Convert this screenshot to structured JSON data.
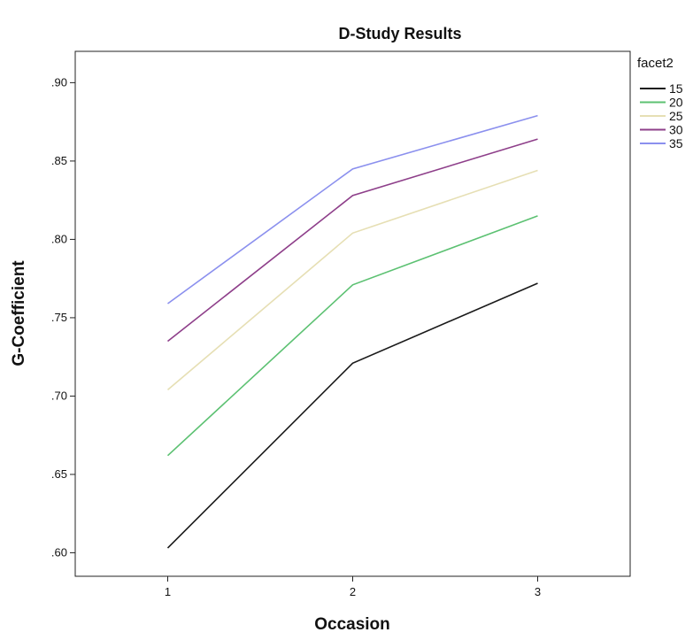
{
  "chart_data": {
    "type": "line",
    "title": "D-Study Results",
    "xlabel": "Occasion",
    "ylabel": "G-Coefficient",
    "x": [
      1,
      2,
      3
    ],
    "x_tick_labels": [
      "1",
      "2",
      "3"
    ],
    "xlim": [
      0.5,
      3.5
    ],
    "ylim": [
      0.585,
      0.92
    ],
    "y_ticks": [
      0.6,
      0.65,
      0.7,
      0.75,
      0.8,
      0.85,
      0.9
    ],
    "y_tick_labels": [
      ".60",
      ".65",
      ".70",
      ".75",
      ".80",
      ".85",
      ".90"
    ],
    "grid": false,
    "legend": {
      "title": "facet2",
      "placement": "right"
    },
    "series": [
      {
        "name": "15",
        "color": "#1a1a1a",
        "values": [
          0.603,
          0.721,
          0.772
        ]
      },
      {
        "name": "20",
        "color": "#5cc172",
        "values": [
          0.662,
          0.771,
          0.815
        ]
      },
      {
        "name": "25",
        "color": "#e6dfb4",
        "values": [
          0.704,
          0.804,
          0.844
        ]
      },
      {
        "name": "30",
        "color": "#8e3f8a",
        "values": [
          0.735,
          0.828,
          0.864
        ]
      },
      {
        "name": "35",
        "color": "#8b90ee",
        "values": [
          0.759,
          0.845,
          0.879
        ]
      }
    ]
  }
}
